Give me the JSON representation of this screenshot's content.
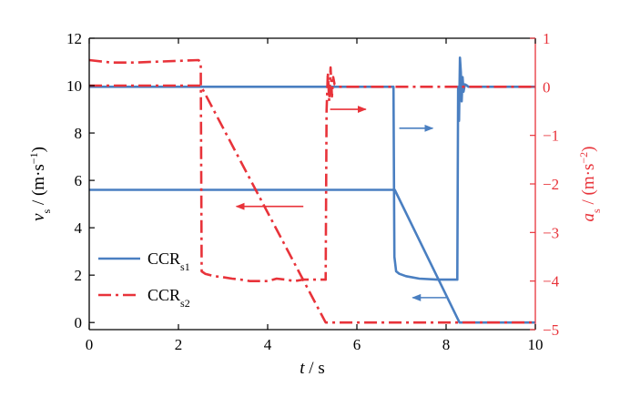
{
  "chart_data": {
    "type": "line",
    "x_axis": {
      "label_var": "t",
      "label_unit": " / s",
      "range": [
        0,
        10
      ],
      "ticks": [
        0,
        2,
        4,
        6,
        8,
        10
      ]
    },
    "y_left": {
      "label_var": "v",
      "label_sub": "s",
      "label_unit": " / (m·s",
      "label_sup": "−1",
      "label_close": ")",
      "range": [
        -0.3,
        12
      ],
      "ticks": [
        0,
        2,
        4,
        6,
        8,
        10,
        12
      ],
      "color": "#000000"
    },
    "y_right": {
      "label_var": "a",
      "label_sub": "s",
      "label_unit": " / (m·s",
      "label_sup": "−2",
      "label_close": ")",
      "range": [
        -5,
        1
      ],
      "ticks": [
        1,
        0,
        -1,
        -2,
        -3,
        -4,
        -5
      ],
      "tick_labels": [
        "1",
        "0",
        "−1",
        "−2",
        "−3",
        "−4",
        "−5"
      ],
      "color": "#e8333a"
    },
    "legend": {
      "position": "lower-left",
      "entries": [
        {
          "main": "CCR",
          "sub": "s1",
          "color": "#4a7fc1",
          "dash": "solid"
        },
        {
          "main": "CCR",
          "sub": "s2",
          "color": "#e8333a",
          "dash": "dash-dot"
        }
      ]
    },
    "series": [
      {
        "id": "s1-velocity",
        "axis": "left",
        "color": "#4a7fc1",
        "dash": "solid",
        "x": [
          0,
          6.85,
          8.3,
          10
        ],
        "y": [
          5.6,
          5.6,
          0,
          0
        ]
      },
      {
        "id": "s1-acceleration",
        "axis": "right",
        "color": "#4a7fc1",
        "dash": "solid",
        "x": [
          0,
          6.82,
          6.84,
          6.88,
          6.95,
          7.1,
          7.4,
          7.8,
          8.2,
          8.25,
          8.27,
          8.29,
          8.31,
          8.33,
          8.35,
          8.37,
          8.39,
          8.42,
          8.46,
          8.5,
          8.6,
          8.8,
          9.2,
          10
        ],
        "y": [
          0,
          0,
          -3.5,
          -3.8,
          -3.85,
          -3.9,
          -3.95,
          -3.97,
          -3.97,
          -3.97,
          0,
          -0.7,
          0.6,
          0.3,
          -0.3,
          0.2,
          -0.1,
          0.05,
          0.03,
          0,
          0,
          0,
          0,
          0
        ]
      },
      {
        "id": "s2-velocity",
        "axis": "left",
        "color": "#e8333a",
        "dash": "dash-dot",
        "x": [
          0,
          2.5,
          5.3,
          10
        ],
        "y": [
          10,
          10,
          0,
          0
        ]
      },
      {
        "id": "s2-acceleration",
        "axis": "right",
        "color": "#e8333a",
        "dash": "dash-dot",
        "x": [
          0,
          0.5,
          1.0,
          2.45,
          2.5,
          2.52,
          2.6,
          2.8,
          3.0,
          3.2,
          3.4,
          3.6,
          3.8,
          4.0,
          4.2,
          4.4,
          4.6,
          4.8,
          5.0,
          5.2,
          5.3,
          5.32,
          5.35,
          5.38,
          5.41,
          5.44,
          5.47,
          5.5,
          5.55,
          5.6,
          5.7,
          6.0,
          10
        ],
        "y": [
          0.55,
          0.5,
          0.5,
          0.55,
          0.5,
          -3.8,
          -3.85,
          -3.9,
          -3.92,
          -3.95,
          -3.97,
          -4.0,
          -4.0,
          -4.0,
          -3.95,
          -3.97,
          -4.0,
          -3.97,
          -3.97,
          -3.97,
          -3.97,
          -0.5,
          0.3,
          -0.3,
          0.4,
          -0.2,
          0.2,
          0.05,
          0.03,
          0,
          0,
          0,
          0
        ]
      }
    ],
    "arrows": [
      {
        "color": "#e8333a",
        "from": [
          4.8,
          4.9
        ],
        "to": [
          3.3,
          4.9
        ]
      },
      {
        "color": "#e8333a",
        "from": [
          5.4,
          9.0
        ],
        "to": [
          6.2,
          9.0
        ]
      },
      {
        "color": "#4a7fc1",
        "from": [
          6.95,
          8.2
        ],
        "to": [
          7.7,
          8.2
        ]
      },
      {
        "color": "#4a7fc1",
        "from": [
          8.0,
          1.05
        ],
        "to": [
          7.25,
          1.05
        ]
      }
    ]
  }
}
